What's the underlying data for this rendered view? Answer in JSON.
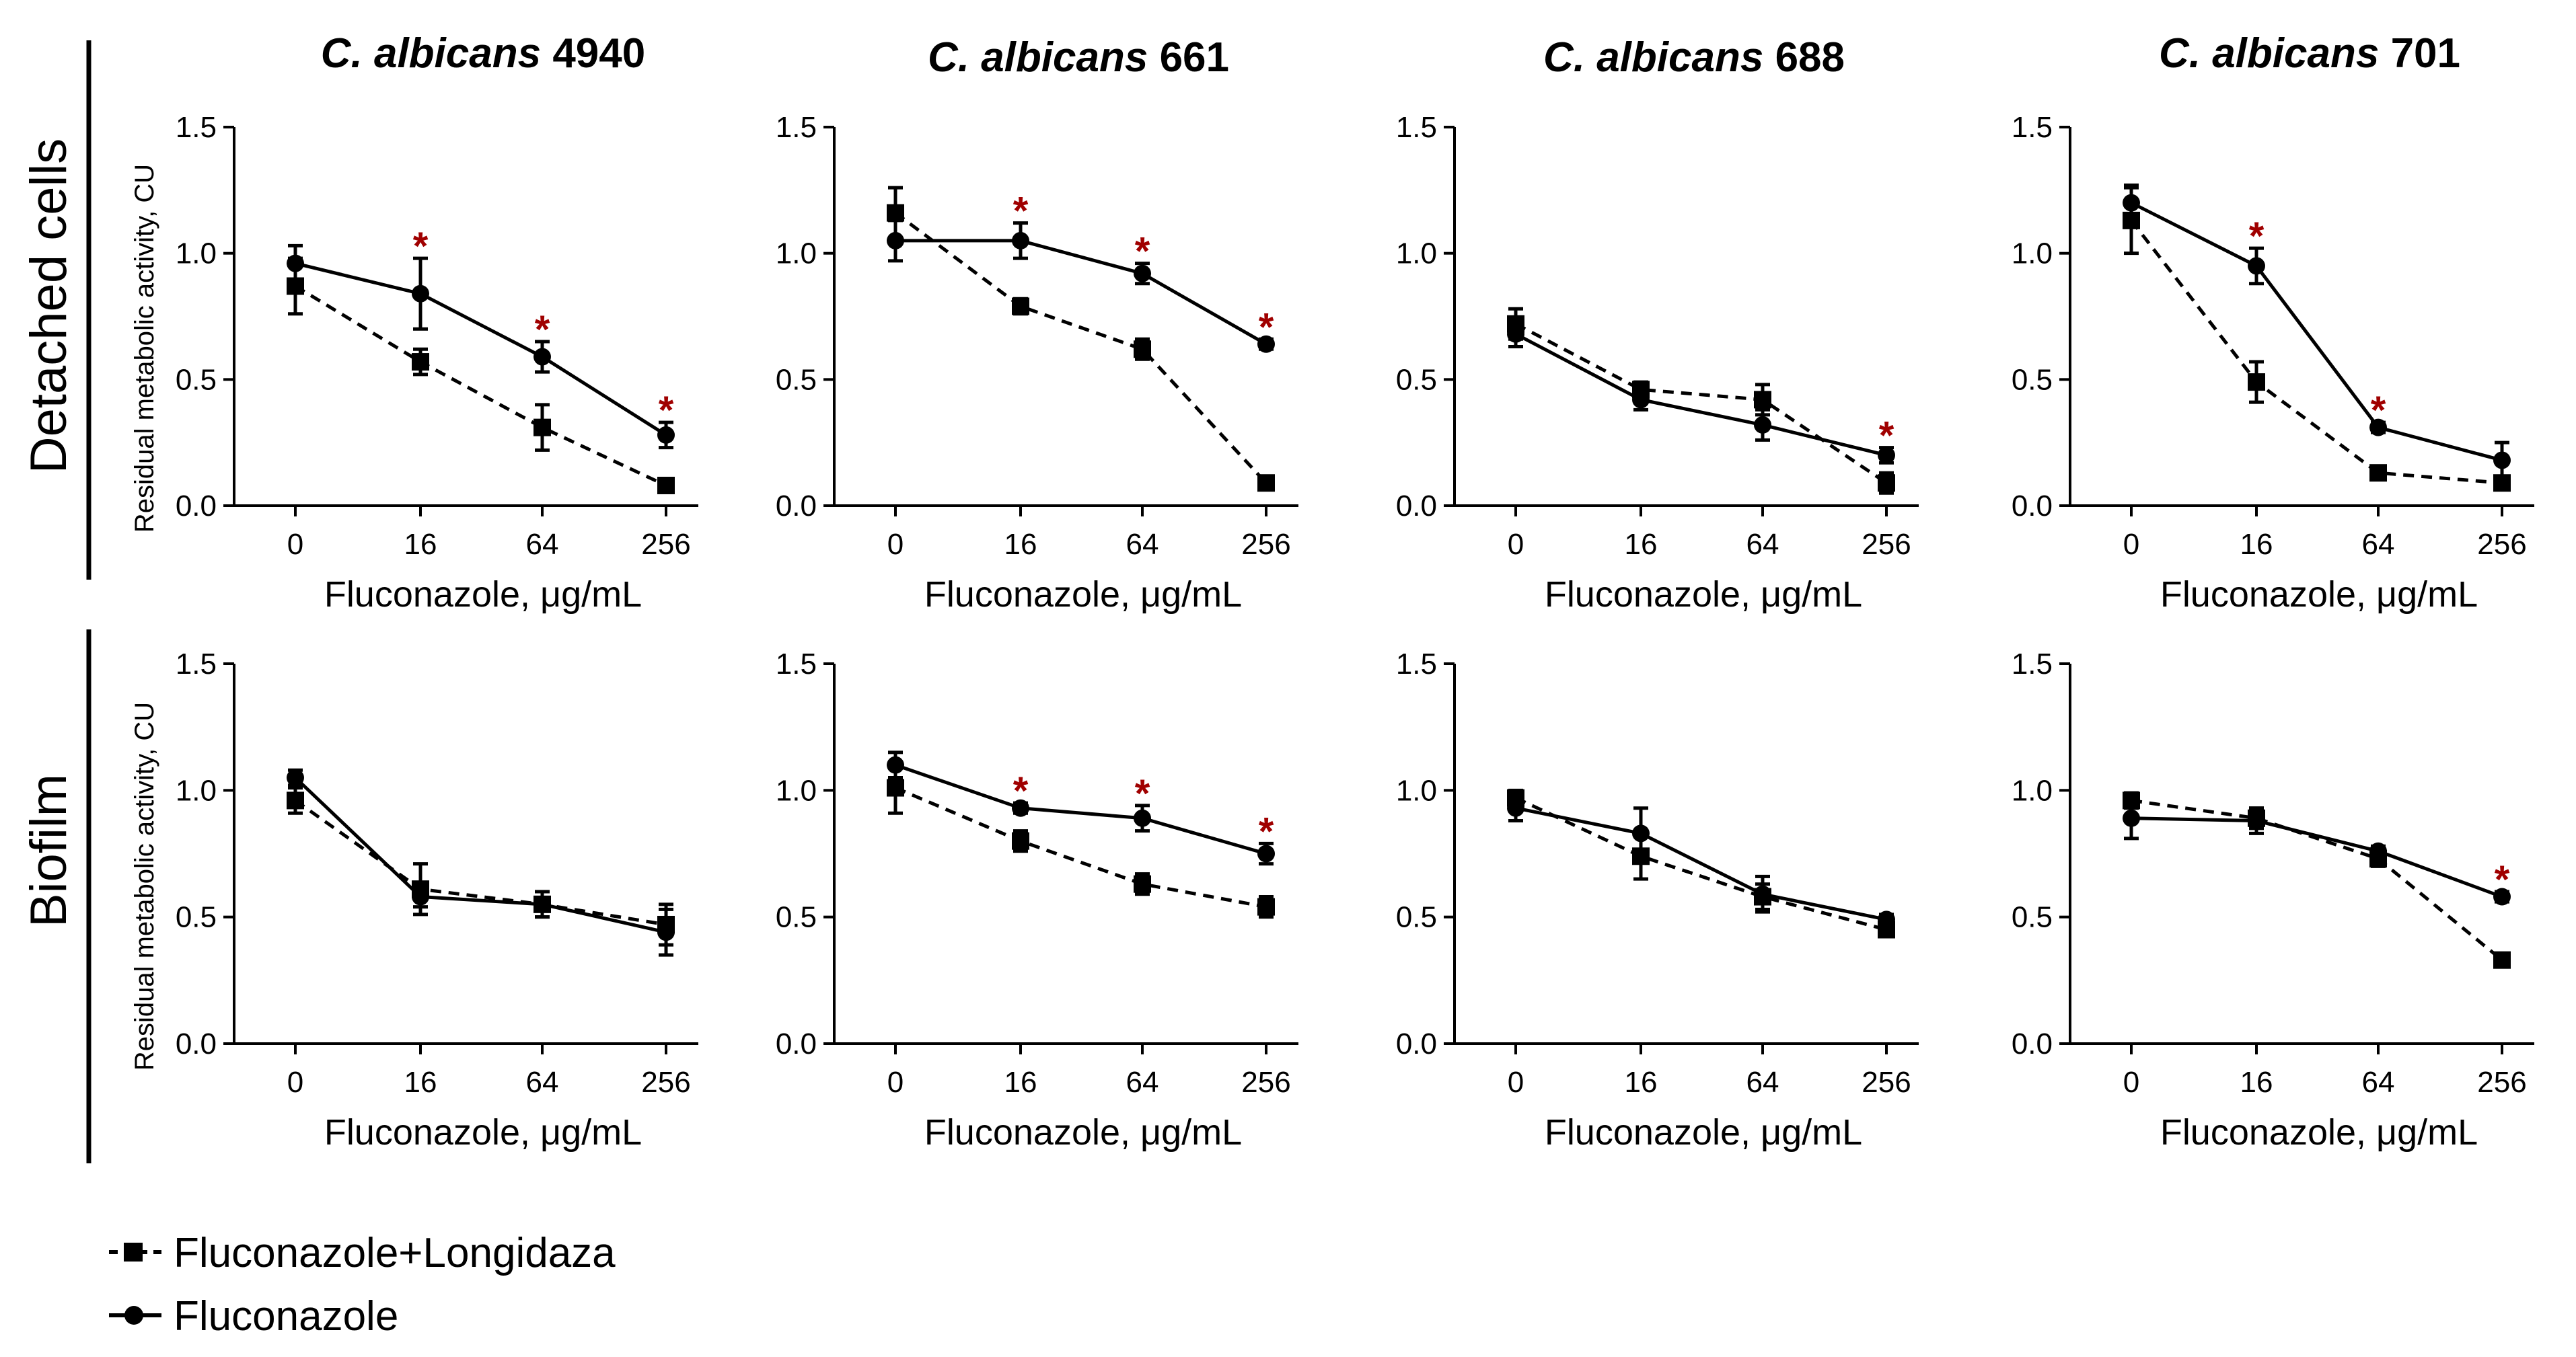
{
  "row_labels": [
    "Detached cells",
    "Biofilm"
  ],
  "column_titles": [
    {
      "italic": "C. albicans",
      "strain": "4940"
    },
    {
      "italic": "C. albicans",
      "strain": "661"
    },
    {
      "italic": "C. albicans",
      "strain": "688"
    },
    {
      "italic": "C. albicans",
      "strain": "701"
    }
  ],
  "ylabel": "Residual metabolic activity, CU",
  "xlabel": "Fluconazole, μg/mL",
  "legend": {
    "combo": "Fluconazole+Longidaza",
    "single": "Fluconazole"
  },
  "colors": {
    "lines": "#000000",
    "significance": "#a00000"
  },
  "chart_data": [
    {
      "type": "line",
      "row": 0,
      "col": 0,
      "title": "C. albicans 4940",
      "categories": [
        "0",
        "16",
        "64",
        "256"
      ],
      "ylim": [
        0,
        1.5
      ],
      "yticks": [
        "0.0",
        "0.5",
        "1.0",
        "1.5"
      ],
      "series": [
        {
          "name": "Fluconazole+Longidaza",
          "values": [
            0.87,
            0.57,
            0.31,
            0.08
          ],
          "errors": [
            0.11,
            0.05,
            0.09,
            0.02
          ]
        },
        {
          "name": "Fluconazole",
          "values": [
            0.96,
            0.84,
            0.59,
            0.28
          ],
          "errors": [
            0.07,
            0.14,
            0.06,
            0.05
          ]
        }
      ],
      "significance": [
        "",
        "*",
        "*",
        "*"
      ]
    },
    {
      "type": "line",
      "row": 0,
      "col": 1,
      "title": "C. albicans 661",
      "categories": [
        "0",
        "16",
        "64",
        "256"
      ],
      "ylim": [
        0,
        1.5
      ],
      "yticks": [
        "0.0",
        "0.5",
        "1.0",
        "1.5"
      ],
      "series": [
        {
          "name": "Fluconazole+Longidaza",
          "values": [
            1.16,
            0.79,
            0.62,
            0.09
          ],
          "errors": [
            0.1,
            0.03,
            0.04,
            0.02
          ]
        },
        {
          "name": "Fluconazole",
          "values": [
            1.05,
            1.05,
            0.92,
            0.64
          ],
          "errors": [
            0.08,
            0.07,
            0.04,
            0.02
          ]
        }
      ],
      "significance": [
        "",
        "*",
        "*",
        "*"
      ]
    },
    {
      "type": "line",
      "row": 0,
      "col": 2,
      "title": "C. albicans 688",
      "categories": [
        "0",
        "16",
        "64",
        "256"
      ],
      "ylim": [
        0,
        1.5
      ],
      "yticks": [
        "0.0",
        "0.5",
        "1.0",
        "1.5"
      ],
      "series": [
        {
          "name": "Fluconazole+Longidaza",
          "values": [
            0.72,
            0.46,
            0.42,
            0.09
          ],
          "errors": [
            0.06,
            0.03,
            0.06,
            0.04
          ]
        },
        {
          "name": "Fluconazole",
          "values": [
            0.68,
            0.42,
            0.32,
            0.2
          ],
          "errors": [
            0.05,
            0.04,
            0.06,
            0.03
          ]
        }
      ],
      "significance": [
        "",
        "",
        "",
        "*"
      ]
    },
    {
      "type": "line",
      "row": 0,
      "col": 3,
      "title": "C. albicans 701",
      "categories": [
        "0",
        "16",
        "64",
        "256"
      ],
      "ylim": [
        0,
        1.5
      ],
      "yticks": [
        "0.0",
        "0.5",
        "1.0",
        "1.5"
      ],
      "series": [
        {
          "name": "Fluconazole+Longidaza",
          "values": [
            1.13,
            0.49,
            0.13,
            0.09
          ],
          "errors": [
            0.13,
            0.08,
            0.02,
            0.02
          ]
        },
        {
          "name": "Fluconazole",
          "values": [
            1.2,
            0.95,
            0.31,
            0.18
          ],
          "errors": [
            0.07,
            0.07,
            0.02,
            0.07
          ]
        }
      ],
      "significance": [
        "",
        "*",
        "*",
        ""
      ]
    },
    {
      "type": "line",
      "row": 1,
      "col": 0,
      "title": "C. albicans 4940",
      "categories": [
        "0",
        "16",
        "64",
        "256"
      ],
      "ylim": [
        0,
        1.5
      ],
      "yticks": [
        "0.0",
        "0.5",
        "1.0",
        "1.5"
      ],
      "series": [
        {
          "name": "Fluconazole+Longidaza",
          "values": [
            0.96,
            0.61,
            0.55,
            0.47
          ],
          "errors": [
            0.05,
            0.1,
            0.05,
            0.08
          ]
        },
        {
          "name": "Fluconazole",
          "values": [
            1.05,
            0.58,
            0.55,
            0.44
          ],
          "errors": [
            0.03,
            0.04,
            0.05,
            0.09
          ]
        }
      ],
      "significance": [
        "",
        "",
        "",
        ""
      ]
    },
    {
      "type": "line",
      "row": 1,
      "col": 1,
      "title": "C. albicans 661",
      "categories": [
        "0",
        "16",
        "64",
        "256"
      ],
      "ylim": [
        0,
        1.5
      ],
      "yticks": [
        "0.0",
        "0.5",
        "1.0",
        "1.5"
      ],
      "series": [
        {
          "name": "Fluconazole+Longidaza",
          "values": [
            1.01,
            0.8,
            0.63,
            0.54
          ],
          "errors": [
            0.1,
            0.04,
            0.04,
            0.04
          ]
        },
        {
          "name": "Fluconazole",
          "values": [
            1.1,
            0.93,
            0.89,
            0.75
          ],
          "errors": [
            0.05,
            0.02,
            0.05,
            0.04
          ]
        }
      ],
      "significance": [
        "",
        "*",
        "*",
        "*"
      ]
    },
    {
      "type": "line",
      "row": 1,
      "col": 2,
      "title": "C. albicans 688",
      "categories": [
        "0",
        "16",
        "64",
        "256"
      ],
      "ylim": [
        0,
        1.5
      ],
      "yticks": [
        "0.0",
        "0.5",
        "1.0",
        "1.5"
      ],
      "series": [
        {
          "name": "Fluconazole+Longidaza",
          "values": [
            0.97,
            0.74,
            0.58,
            0.45
          ],
          "errors": [
            0.03,
            0.09,
            0.05,
            0.02
          ]
        },
        {
          "name": "Fluconazole",
          "values": [
            0.93,
            0.83,
            0.59,
            0.49
          ],
          "errors": [
            0.05,
            0.1,
            0.07,
            0.02
          ]
        }
      ],
      "significance": [
        "",
        "",
        "",
        ""
      ]
    },
    {
      "type": "line",
      "row": 1,
      "col": 3,
      "title": "C. albicans 701",
      "categories": [
        "0",
        "16",
        "64",
        "256"
      ],
      "ylim": [
        0,
        1.5
      ],
      "yticks": [
        "0.0",
        "0.5",
        "1.0",
        "1.5"
      ],
      "series": [
        {
          "name": "Fluconazole+Longidaza",
          "values": [
            0.96,
            0.89,
            0.73,
            0.33
          ],
          "errors": [
            0.03,
            0.04,
            0.03,
            0.02
          ]
        },
        {
          "name": "Fluconazole",
          "values": [
            0.89,
            0.88,
            0.76,
            0.58
          ],
          "errors": [
            0.08,
            0.05,
            0.02,
            0.02
          ]
        }
      ],
      "significance": [
        "",
        "",
        "",
        "*"
      ]
    }
  ]
}
